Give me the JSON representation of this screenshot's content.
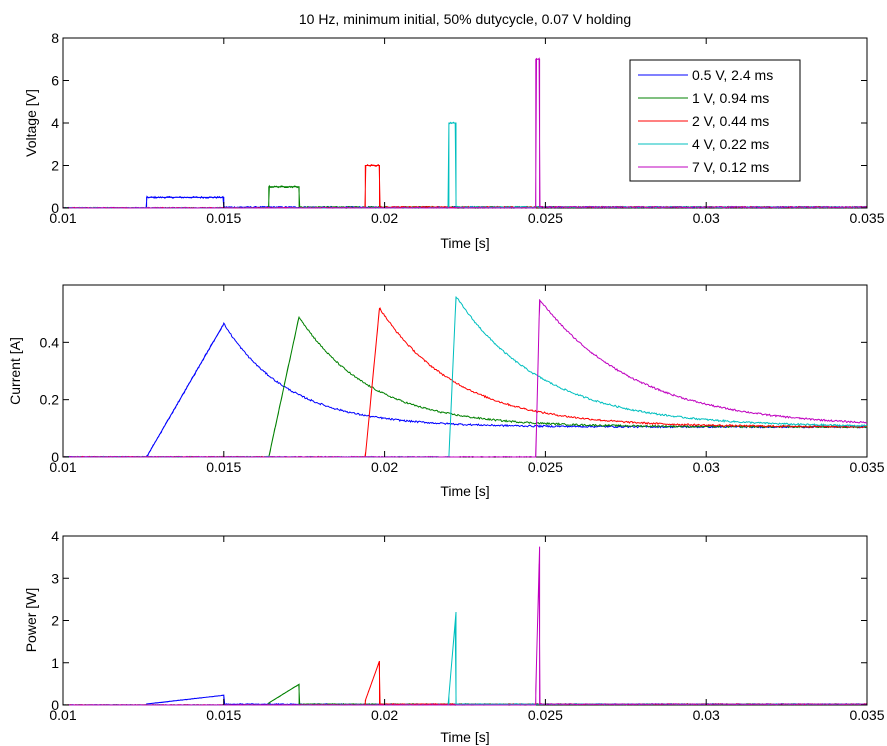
{
  "title": "10 Hz, minimum initial, 50% dutycycle, 0.07 V holding",
  "series_colors": [
    "#0000ff",
    "#008000",
    "#ff0000",
    "#00bfbf",
    "#bf00bf"
  ],
  "legend": [
    "0.5 V, 2.4 ms",
    "1 V, 0.94 ms",
    "2 V, 0.44 ms",
    "4 V, 0.22 ms",
    "7 V, 0.12 ms"
  ],
  "chart_data": [
    {
      "type": "line",
      "title": "10 Hz, minimum initial, 50% dutycycle, 0.07 V holding",
      "xlabel": "Time [s]",
      "ylabel": "Voltage [V]",
      "xlim": [
        0.01,
        0.035
      ],
      "ylim": [
        0,
        8
      ],
      "xticks": [
        0.01,
        0.015,
        0.02,
        0.025,
        0.03,
        0.035
      ],
      "xtick_labels": [
        "0.01",
        "0.015",
        "0.02",
        "0.025",
        "0.03",
        "0.035"
      ],
      "yticks": [
        0,
        2,
        4,
        6,
        8
      ],
      "ytick_labels": [
        "0",
        "2",
        "4",
        "6",
        "8"
      ],
      "legend_position": "top-right",
      "series": [
        {
          "name": "0.5 V, 2.4 ms",
          "pulse_start": 0.0126,
          "pulse_end": 0.015,
          "amplitude": 0.5,
          "baseline": 0.07
        },
        {
          "name": "1 V, 0.94 ms",
          "pulse_start": 0.0164,
          "pulse_end": 0.01734,
          "amplitude": 1.0,
          "baseline": 0.07
        },
        {
          "name": "2 V, 0.44 ms",
          "pulse_start": 0.0194,
          "pulse_end": 0.01984,
          "amplitude": 2.0,
          "baseline": 0.07
        },
        {
          "name": "4 V, 0.22 ms",
          "pulse_start": 0.022,
          "pulse_end": 0.02222,
          "amplitude": 4.0,
          "baseline": 0.07
        },
        {
          "name": "7 V, 0.12 ms",
          "pulse_start": 0.0247,
          "pulse_end": 0.02482,
          "amplitude": 7.0,
          "baseline": 0.07
        }
      ]
    },
    {
      "type": "line",
      "xlabel": "Time [s]",
      "ylabel": "Current [A]",
      "xlim": [
        0.01,
        0.035
      ],
      "ylim": [
        0,
        0.6
      ],
      "xticks": [
        0.01,
        0.015,
        0.02,
        0.025,
        0.03,
        0.035
      ],
      "xtick_labels": [
        "0.01",
        "0.015",
        "0.02",
        "0.025",
        "0.03",
        "0.035"
      ],
      "yticks": [
        0,
        0.2,
        0.4
      ],
      "ytick_labels": [
        "0",
        "0.2",
        "0.4"
      ],
      "series": [
        {
          "name": "0.5 V, 2.4 ms",
          "rise_start": 0.0126,
          "peak_time": 0.015,
          "peak": 0.465,
          "final": 0.105,
          "decay_tau": 0.002
        },
        {
          "name": "1 V, 0.94 ms",
          "rise_start": 0.0164,
          "peak_time": 0.01734,
          "peak": 0.49,
          "final": 0.105,
          "decay_tau": 0.0022
        },
        {
          "name": "2 V, 0.44 ms",
          "rise_start": 0.0194,
          "peak_time": 0.01984,
          "peak": 0.52,
          "final": 0.105,
          "decay_tau": 0.0024
        },
        {
          "name": "4 V, 0.22 ms",
          "rise_start": 0.022,
          "peak_time": 0.02222,
          "peak": 0.56,
          "final": 0.105,
          "decay_tau": 0.0027
        },
        {
          "name": "7 V, 0.12 ms",
          "rise_start": 0.0247,
          "peak_time": 0.02482,
          "peak": 0.55,
          "final": 0.105,
          "decay_tau": 0.003
        }
      ]
    },
    {
      "type": "line",
      "xlabel": "Time [s]",
      "ylabel": "Power [W]",
      "xlim": [
        0.01,
        0.035
      ],
      "ylim": [
        0,
        4
      ],
      "xticks": [
        0.01,
        0.015,
        0.02,
        0.025,
        0.03,
        0.035
      ],
      "xtick_labels": [
        "0.01",
        "0.015",
        "0.02",
        "0.025",
        "0.03",
        "0.035"
      ],
      "yticks": [
        0,
        1,
        2,
        3,
        4
      ],
      "ytick_labels": [
        "0",
        "1",
        "2",
        "3",
        "4"
      ],
      "series": [
        {
          "name": "0.5 V, 2.4 ms",
          "pulse_start": 0.0126,
          "pulse_end": 0.015,
          "peak": 0.23
        },
        {
          "name": "1 V, 0.94 ms",
          "pulse_start": 0.0164,
          "pulse_end": 0.01734,
          "peak": 0.49
        },
        {
          "name": "2 V, 0.44 ms",
          "pulse_start": 0.0194,
          "pulse_end": 0.01984,
          "peak": 1.04
        },
        {
          "name": "4 V, 0.22 ms",
          "pulse_start": 0.022,
          "pulse_end": 0.02222,
          "peak": 2.2
        },
        {
          "name": "7 V, 0.12 ms",
          "pulse_start": 0.0247,
          "pulse_end": 0.02482,
          "peak": 3.75
        }
      ]
    }
  ]
}
